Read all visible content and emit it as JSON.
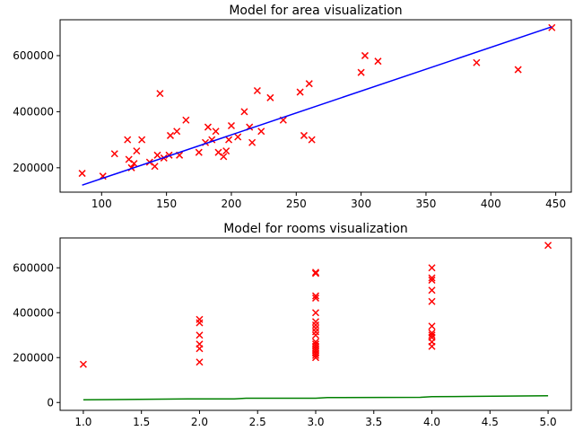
{
  "chart_data": [
    {
      "type": "scatter",
      "title": "Model for area visualization",
      "xlabel": "",
      "ylabel": "",
      "xlim": [
        68,
        462
      ],
      "ylim": [
        113000,
        728000
      ],
      "xticks": [
        100,
        150,
        200,
        250,
        300,
        350,
        400,
        450
      ],
      "xtick_labels": [
        "100",
        "150",
        "200",
        "250",
        "300",
        "350",
        "400",
        "450"
      ],
      "yticks": [
        200000,
        400000,
        600000
      ],
      "ytick_labels": [
        "200000",
        "400000",
        "600000"
      ],
      "grid": false,
      "series": [
        {
          "kind": "scatter",
          "marker": "x",
          "color": "#ff0000",
          "points": [
            [
              85,
              180000
            ],
            [
              101,
              170000
            ],
            [
              110,
              250000
            ],
            [
              120,
              300000
            ],
            [
              121,
              230000
            ],
            [
              123,
              200000
            ],
            [
              125,
              215000
            ],
            [
              127,
              260000
            ],
            [
              131,
              300000
            ],
            [
              137,
              220000
            ],
            [
              141,
              205000
            ],
            [
              143,
              245000
            ],
            [
              145,
              465000
            ],
            [
              148,
              235000
            ],
            [
              152,
              245000
            ],
            [
              153,
              315000
            ],
            [
              158,
              330000
            ],
            [
              160,
              245000
            ],
            [
              165,
              370000
            ],
            [
              175,
              255000
            ],
            [
              180,
              290000
            ],
            [
              182,
              345000
            ],
            [
              185,
              300000
            ],
            [
              188,
              330000
            ],
            [
              190,
              255000
            ],
            [
              194,
              240000
            ],
            [
              196,
              260000
            ],
            [
              198,
              300000
            ],
            [
              200,
              350000
            ],
            [
              205,
              310000
            ],
            [
              210,
              400000
            ],
            [
              214,
              345000
            ],
            [
              216,
              290000
            ],
            [
              220,
              475000
            ],
            [
              223,
              330000
            ],
            [
              230,
              450000
            ],
            [
              240,
              370000
            ],
            [
              253,
              470000
            ],
            [
              256,
              315000
            ],
            [
              260,
              500000
            ],
            [
              262,
              300000
            ],
            [
              300,
              540000
            ],
            [
              303,
              600000
            ],
            [
              313,
              580000
            ],
            [
              389,
              575000
            ],
            [
              421,
              550000
            ],
            [
              447,
              700000
            ]
          ]
        },
        {
          "kind": "line",
          "color": "#0000ff",
          "points": [
            [
              85,
              138000
            ],
            [
              447,
              703000
            ]
          ]
        }
      ]
    },
    {
      "type": "scatter",
      "title": "Model for rooms visualization",
      "xlabel": "",
      "ylabel": "",
      "xlim": [
        0.8,
        5.2
      ],
      "ylim": [
        -35000,
        733000
      ],
      "xticks": [
        1.0,
        1.5,
        2.0,
        2.5,
        3.0,
        3.5,
        4.0,
        4.5,
        5.0
      ],
      "xtick_labels": [
        "1.0",
        "1.5",
        "2.0",
        "2.5",
        "3.0",
        "3.5",
        "4.0",
        "4.5",
        "5.0"
      ],
      "yticks": [
        0,
        200000,
        400000,
        600000
      ],
      "ytick_labels": [
        "0",
        "200000",
        "400000",
        "600000"
      ],
      "grid": false,
      "series": [
        {
          "kind": "scatter",
          "marker": "x",
          "color": "#ff0000",
          "points": [
            [
              1,
              170000
            ],
            [
              2,
              370000
            ],
            [
              2,
              355000
            ],
            [
              2,
              300000
            ],
            [
              2,
              260000
            ],
            [
              2,
              240000
            ],
            [
              2,
              180000
            ],
            [
              3,
              580000
            ],
            [
              3,
              575000
            ],
            [
              3,
              475000
            ],
            [
              3,
              465000
            ],
            [
              3,
              400000
            ],
            [
              3,
              360000
            ],
            [
              3,
              345000
            ],
            [
              3,
              330000
            ],
            [
              3,
              315000
            ],
            [
              3,
              300000
            ],
            [
              3,
              270000
            ],
            [
              3,
              260000
            ],
            [
              3,
              250000
            ],
            [
              3,
              240000
            ],
            [
              3,
              230000
            ],
            [
              3,
              220000
            ],
            [
              3,
              210000
            ],
            [
              3,
              200000
            ],
            [
              4,
              600000
            ],
            [
              4,
              555000
            ],
            [
              4,
              545000
            ],
            [
              4,
              500000
            ],
            [
              4,
              450000
            ],
            [
              4,
              340000
            ],
            [
              4,
              310000
            ],
            [
              4,
              300000
            ],
            [
              4,
              290000
            ],
            [
              4,
              270000
            ],
            [
              4,
              250000
            ],
            [
              5,
              700000
            ]
          ]
        },
        {
          "kind": "line",
          "color": "#008000",
          "points": [
            [
              1.0,
              12000
            ],
            [
              1.9,
              16000
            ],
            [
              2.3,
              16000
            ],
            [
              2.4,
              19000
            ],
            [
              3.0,
              19000
            ],
            [
              3.1,
              22000
            ],
            [
              3.9,
              23000
            ],
            [
              4.0,
              26000
            ],
            [
              4.3,
              27000
            ],
            [
              5.0,
              30000
            ]
          ]
        }
      ]
    }
  ]
}
